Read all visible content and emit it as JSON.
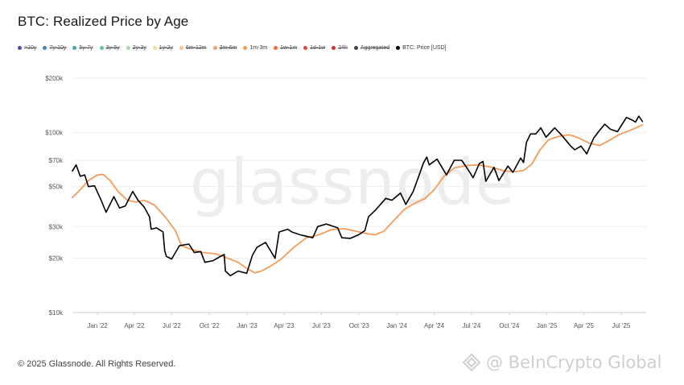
{
  "title": "BTC: Realized Price by Age",
  "legend": [
    {
      "label": ">10y",
      "color": "#5b4a9a",
      "off": true
    },
    {
      "label": "7y-10y",
      "color": "#4a83b0",
      "off": true
    },
    {
      "label": "5y-7y",
      "color": "#4aa6a6",
      "off": true
    },
    {
      "label": "3y-5y",
      "color": "#6dbfa6",
      "off": true
    },
    {
      "label": "2y-3y",
      "color": "#a8d8a8",
      "off": true
    },
    {
      "label": "1y-2y",
      "color": "#f3df9c",
      "off": true
    },
    {
      "label": "6m-12m",
      "color": "#f6c48b",
      "off": true
    },
    {
      "label": "3m-6m",
      "color": "#f2a36a",
      "off": true
    },
    {
      "label": "1m-3m",
      "color": "#f59c5b",
      "off": false
    },
    {
      "label": "1w-1m",
      "color": "#e8704a",
      "off": true
    },
    {
      "label": "1d-1w",
      "color": "#e0463a",
      "off": true
    },
    {
      "label": "24h",
      "color": "#d62f2f",
      "off": true
    },
    {
      "label": "Aggregated",
      "color": "#444444",
      "off": true
    },
    {
      "label": "BTC: Price [USD]",
      "color": "#000000",
      "off": false
    }
  ],
  "watermark": "glassnode",
  "footer": "© 2025 Glassnode. All Rights Reserved.",
  "brand": "@ BeInCrypto Global",
  "colors": {
    "price": "#000000",
    "realized_1m_3m": "#f59c5b",
    "grid": "#eeeeee"
  },
  "chart_data": {
    "type": "line",
    "title": "BTC: Realized Price by Age",
    "yscale": "log",
    "ylim": [
      10000,
      200000
    ],
    "ytick_values": [
      10000,
      20000,
      30000,
      50000,
      70000,
      100000,
      200000
    ],
    "ytick_labels": [
      "$10k",
      "$20k",
      "$30k",
      "$50k",
      "$70k",
      "$100k",
      "$200k"
    ],
    "xlim": [
      "2021-11-01",
      "2025-08-31"
    ],
    "xtick_dates": [
      "2022-01-01",
      "2022-04-01",
      "2022-07-01",
      "2022-10-01",
      "2023-01-01",
      "2023-04-01",
      "2023-07-01",
      "2023-10-01",
      "2024-01-01",
      "2024-04-01",
      "2024-07-01",
      "2024-10-01",
      "2025-01-01",
      "2025-04-01",
      "2025-07-01"
    ],
    "xtick_labels": [
      "Jan '22",
      "Apr '22",
      "Jul '22",
      "Oct '22",
      "Jan '23",
      "Apr '23",
      "Jul '23",
      "Oct '23",
      "Jan '24",
      "Apr '24",
      "Jul '24",
      "Oct '24",
      "Jan '25",
      "Apr '25",
      "Jul '25"
    ],
    "legend_position": "top-left",
    "grid": "horizontal",
    "series": [
      {
        "name": "BTC: Price [USD]",
        "color": "#000000",
        "x": [
          "2021-11-01",
          "2021-11-10",
          "2021-11-20",
          "2021-12-01",
          "2021-12-10",
          "2021-12-25",
          "2022-01-10",
          "2022-01-22",
          "2022-02-10",
          "2022-02-24",
          "2022-03-10",
          "2022-03-28",
          "2022-04-10",
          "2022-04-25",
          "2022-05-08",
          "2022-05-12",
          "2022-05-25",
          "2022-06-10",
          "2022-06-14",
          "2022-06-18",
          "2022-07-01",
          "2022-07-20",
          "2022-08-12",
          "2022-08-25",
          "2022-09-10",
          "2022-09-20",
          "2022-10-10",
          "2022-10-28",
          "2022-11-06",
          "2022-11-09",
          "2022-11-21",
          "2022-12-10",
          "2022-12-31",
          "2023-01-14",
          "2023-01-25",
          "2023-02-15",
          "2023-03-10",
          "2023-03-20",
          "2023-04-10",
          "2023-04-20",
          "2023-05-10",
          "2023-06-10",
          "2023-06-22",
          "2023-07-13",
          "2023-08-10",
          "2023-08-20",
          "2023-09-10",
          "2023-09-30",
          "2023-10-15",
          "2023-10-24",
          "2023-11-10",
          "2023-12-05",
          "2023-12-20",
          "2024-01-10",
          "2024-01-23",
          "2024-02-10",
          "2024-02-28",
          "2024-03-05",
          "2024-03-14",
          "2024-03-20",
          "2024-04-08",
          "2024-04-20",
          "2024-05-01",
          "2024-05-20",
          "2024-06-07",
          "2024-06-25",
          "2024-07-05",
          "2024-07-20",
          "2024-07-29",
          "2024-08-05",
          "2024-08-25",
          "2024-09-06",
          "2024-09-28",
          "2024-10-10",
          "2024-10-29",
          "2024-11-05",
          "2024-11-12",
          "2024-11-22",
          "2024-12-05",
          "2024-12-17",
          "2024-12-30",
          "2025-01-20",
          "2025-02-05",
          "2025-02-28",
          "2025-03-10",
          "2025-03-25",
          "2025-04-08",
          "2025-04-25",
          "2025-05-10",
          "2025-05-22",
          "2025-06-05",
          "2025-06-22",
          "2025-07-14",
          "2025-07-28",
          "2025-08-05",
          "2025-08-13",
          "2025-08-22"
        ],
        "values": [
          61000,
          66000,
          57000,
          58000,
          50000,
          50500,
          42000,
          36000,
          44000,
          38000,
          39000,
          47000,
          42000,
          38500,
          34000,
          29000,
          29500,
          28000,
          22000,
          20500,
          19800,
          23500,
          24000,
          21500,
          21800,
          19000,
          19400,
          20500,
          21000,
          17000,
          16000,
          17000,
          16500,
          20800,
          23000,
          24500,
          20000,
          28000,
          29000,
          28000,
          27000,
          26000,
          30000,
          31000,
          29500,
          26000,
          25800,
          27000,
          28500,
          34000,
          37000,
          43000,
          42000,
          46000,
          39800,
          47000,
          61000,
          67000,
          73000,
          66000,
          71000,
          64000,
          58000,
          70000,
          70000,
          61000,
          56000,
          67000,
          69000,
          53500,
          64000,
          54000,
          65000,
          60000,
          72000,
          68000,
          88000,
          98000,
          98000,
          106000,
          94000,
          106000,
          97000,
          84000,
          80000,
          84000,
          76000,
          93000,
          103000,
          111000,
          104000,
          101000,
          121000,
          117000,
          114000,
          123000,
          115000
        ]
      },
      {
        "name": "1m-3m",
        "color": "#f59c5b",
        "x": [
          "2021-11-01",
          "2021-11-20",
          "2021-12-10",
          "2022-01-01",
          "2022-01-15",
          "2022-02-01",
          "2022-02-20",
          "2022-03-15",
          "2022-04-05",
          "2022-04-25",
          "2022-05-20",
          "2022-06-15",
          "2022-07-10",
          "2022-07-25",
          "2022-08-15",
          "2022-09-15",
          "2022-10-15",
          "2022-11-10",
          "2022-12-10",
          "2023-01-01",
          "2023-01-20",
          "2023-02-05",
          "2023-03-01",
          "2023-03-25",
          "2023-04-25",
          "2023-05-25",
          "2023-06-25",
          "2023-07-25",
          "2023-08-25",
          "2023-09-25",
          "2023-10-20",
          "2023-11-10",
          "2023-12-01",
          "2023-12-25",
          "2024-01-20",
          "2024-02-15",
          "2024-03-10",
          "2024-04-01",
          "2024-04-25",
          "2024-05-20",
          "2024-06-20",
          "2024-07-20",
          "2024-08-20",
          "2024-09-20",
          "2024-10-15",
          "2024-11-05",
          "2024-11-25",
          "2024-12-15",
          "2025-01-05",
          "2025-01-30",
          "2025-02-25",
          "2025-03-20",
          "2025-04-15",
          "2025-05-10",
          "2025-06-01",
          "2025-06-25",
          "2025-07-20",
          "2025-08-10",
          "2025-08-22"
        ],
        "values": [
          43500,
          48000,
          54000,
          58000,
          58500,
          54000,
          47000,
          42000,
          41000,
          42000,
          39500,
          34000,
          28500,
          23500,
          22500,
          21500,
          21200,
          20200,
          19000,
          17500,
          16600,
          17000,
          18200,
          19800,
          23000,
          26000,
          27000,
          28800,
          29200,
          28200,
          27400,
          27000,
          28300,
          32500,
          37500,
          40500,
          43000,
          48000,
          57000,
          63500,
          65500,
          66000,
          64000,
          61000,
          60500,
          61500,
          66500,
          80000,
          91000,
          95000,
          97000,
          93000,
          87000,
          84500,
          90000,
          97000,
          102000,
          107000,
          110000
        ]
      }
    ]
  }
}
